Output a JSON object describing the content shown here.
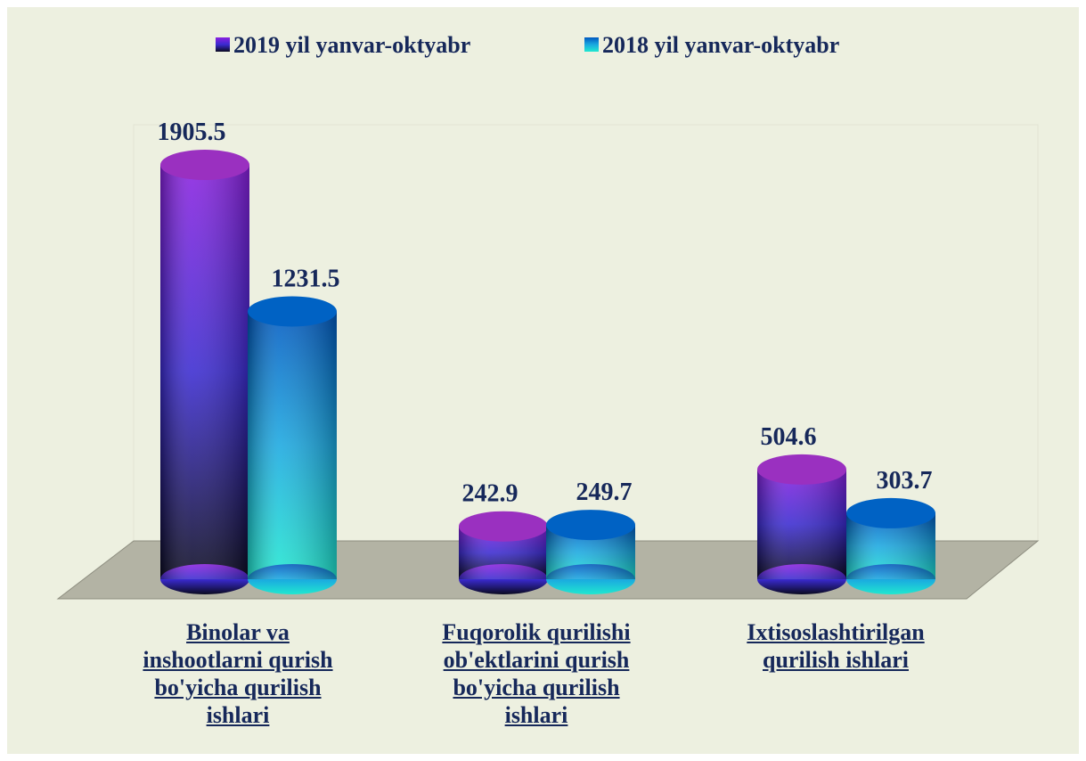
{
  "chart_data": {
    "type": "bar3d",
    "categories": [
      "Binolar va inshootlarni qurish bo'yicha qurilish ishlari",
      "Fuqorolik qurilishi ob'ektlarini qurish bo'yicha qurilish ishlari",
      "Ixtisoslashtirilgan qurilish ishlari"
    ],
    "series": [
      {
        "name": "2019 yil yanvar-oktyabr",
        "color": "#3a2ad0",
        "values": [
          1905.5,
          242.9,
          504.6
        ]
      },
      {
        "name": "2018 yil yanvar-oktyabr",
        "color": "#1aa8e0",
        "values": [
          1231.5,
          249.7,
          303.7
        ]
      }
    ],
    "legend": "top"
  }
}
